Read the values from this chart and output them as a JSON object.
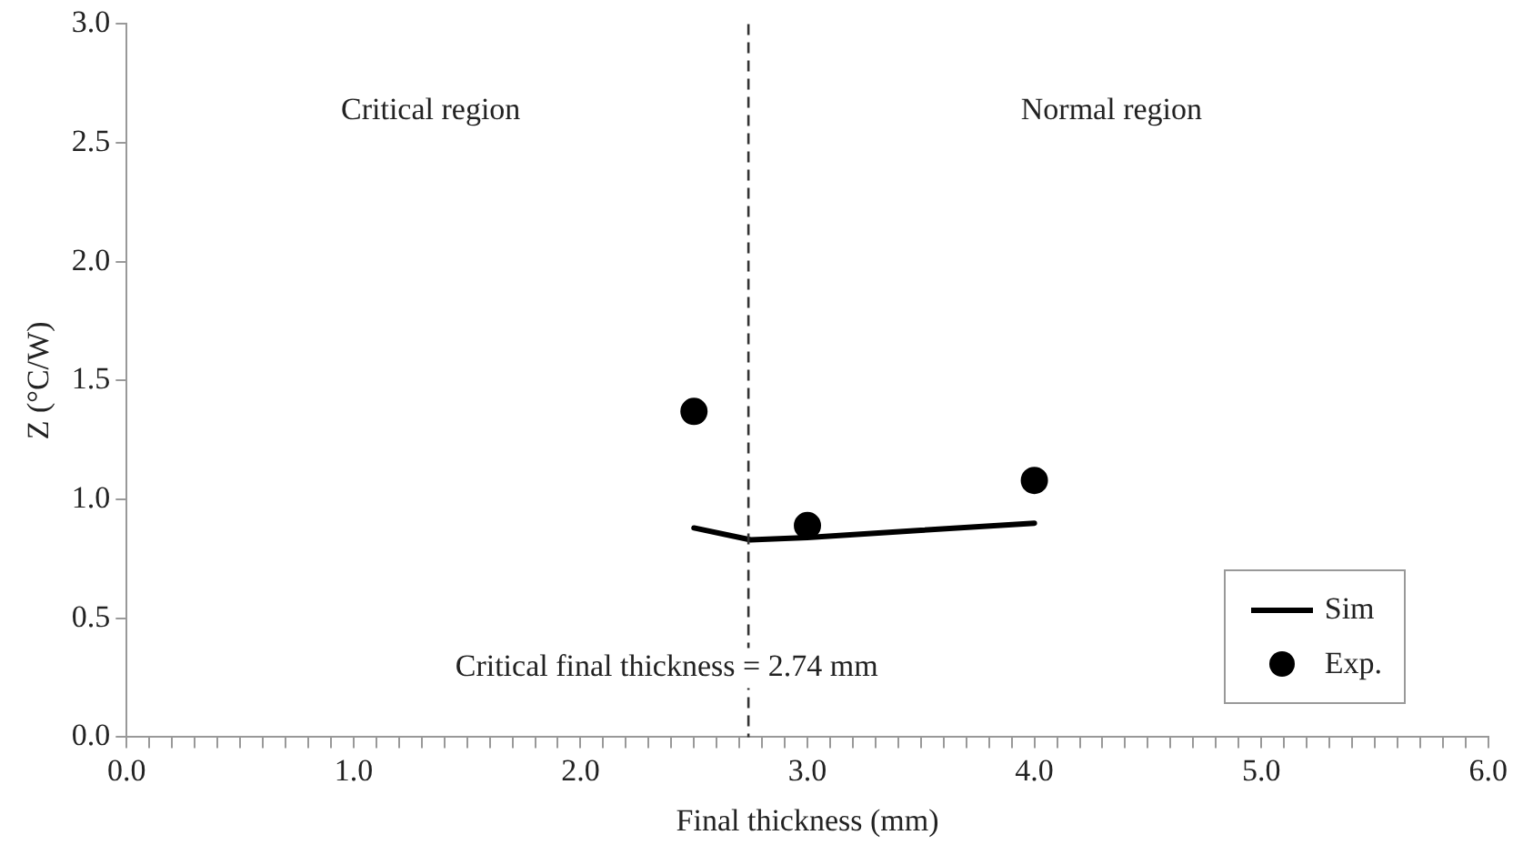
{
  "chart_data": {
    "type": "line",
    "xlabel": "Final thickness (mm)",
    "ylabel": "Z (°C/W)",
    "series": [
      {
        "name": "Sim",
        "type": "line",
        "color": "#000000",
        "x": [
          2.5,
          2.75,
          3.0,
          3.5,
          4.0
        ],
        "values": [
          0.88,
          0.83,
          0.84,
          0.87,
          0.9
        ]
      },
      {
        "name": "Exp.",
        "type": "scatter",
        "color": "#000000",
        "marker": "circle",
        "x": [
          2.5,
          3.0,
          4.0
        ],
        "values": [
          1.37,
          0.89,
          1.08
        ]
      }
    ],
    "xlim": [
      0,
      6
    ],
    "ylim": [
      0,
      3
    ],
    "xticks": [
      {
        "value": 0,
        "label": "0.0"
      },
      {
        "value": 0.1,
        "label": null
      },
      {
        "value": 0.2,
        "label": null
      },
      {
        "value": 0.3,
        "label": null
      },
      {
        "value": 0.4,
        "label": null
      },
      {
        "value": 0.5,
        "label": null
      },
      {
        "value": 0.6,
        "label": null
      },
      {
        "value": 0.7,
        "label": null
      },
      {
        "value": 0.8,
        "label": null
      },
      {
        "value": 0.9,
        "label": null
      },
      {
        "value": 1,
        "label": "1.0"
      },
      {
        "value": 1.1,
        "label": null
      },
      {
        "value": 1.2,
        "label": null
      },
      {
        "value": 1.3,
        "label": null
      },
      {
        "value": 1.4,
        "label": null
      },
      {
        "value": 1.5,
        "label": null
      },
      {
        "value": 1.6,
        "label": null
      },
      {
        "value": 1.7,
        "label": null
      },
      {
        "value": 1.8,
        "label": null
      },
      {
        "value": 1.9,
        "label": null
      },
      {
        "value": 2,
        "label": "2.0"
      },
      {
        "value": 2.1,
        "label": null
      },
      {
        "value": 2.2,
        "label": null
      },
      {
        "value": 2.3,
        "label": null
      },
      {
        "value": 2.4,
        "label": null
      },
      {
        "value": 2.5,
        "label": null
      },
      {
        "value": 2.6,
        "label": null
      },
      {
        "value": 2.7,
        "label": null
      },
      {
        "value": 2.8,
        "label": null
      },
      {
        "value": 2.9,
        "label": null
      },
      {
        "value": 3,
        "label": "3.0"
      },
      {
        "value": 3.1,
        "label": null
      },
      {
        "value": 3.2,
        "label": null
      },
      {
        "value": 3.3,
        "label": null
      },
      {
        "value": 3.4,
        "label": null
      },
      {
        "value": 3.5,
        "label": null
      },
      {
        "value": 3.6,
        "label": null
      },
      {
        "value": 3.7,
        "label": null
      },
      {
        "value": 3.8,
        "label": null
      },
      {
        "value": 3.9,
        "label": null
      },
      {
        "value": 4,
        "label": "4.0"
      },
      {
        "value": 4.1,
        "label": null
      },
      {
        "value": 4.2,
        "label": null
      },
      {
        "value": 4.3,
        "label": null
      },
      {
        "value": 4.4,
        "label": null
      },
      {
        "value": 4.5,
        "label": null
      },
      {
        "value": 4.6,
        "label": null
      },
      {
        "value": 4.7,
        "label": null
      },
      {
        "value": 4.8,
        "label": null
      },
      {
        "value": 4.9,
        "label": null
      },
      {
        "value": 5,
        "label": "5.0"
      },
      {
        "value": 5.1,
        "label": null
      },
      {
        "value": 5.2,
        "label": null
      },
      {
        "value": 5.3,
        "label": null
      },
      {
        "value": 5.4,
        "label": null
      },
      {
        "value": 5.5,
        "label": null
      },
      {
        "value": 5.6,
        "label": null
      },
      {
        "value": 5.7,
        "label": null
      },
      {
        "value": 5.8,
        "label": null
      },
      {
        "value": 5.9,
        "label": null
      },
      {
        "value": 6,
        "label": "6.0"
      }
    ],
    "yticks": [
      {
        "value": 0,
        "label": "0.0"
      },
      {
        "value": 0.5,
        "label": "0.5"
      },
      {
        "value": 1,
        "label": "1.0"
      },
      {
        "value": 1.5,
        "label": "1.5"
      },
      {
        "value": 2,
        "label": "2.0"
      },
      {
        "value": 2.5,
        "label": "2.5"
      },
      {
        "value": 3,
        "label": "3.0"
      }
    ],
    "ref_lines": [
      {
        "axis": "x",
        "value": 2.74,
        "label": "Critical final thickness = 2.74 mm",
        "color": "#333333",
        "line_style": "dashed"
      }
    ],
    "annotations": [
      "Critical region",
      "Normal region"
    ],
    "grid": false,
    "legend": "bottom right"
  }
}
